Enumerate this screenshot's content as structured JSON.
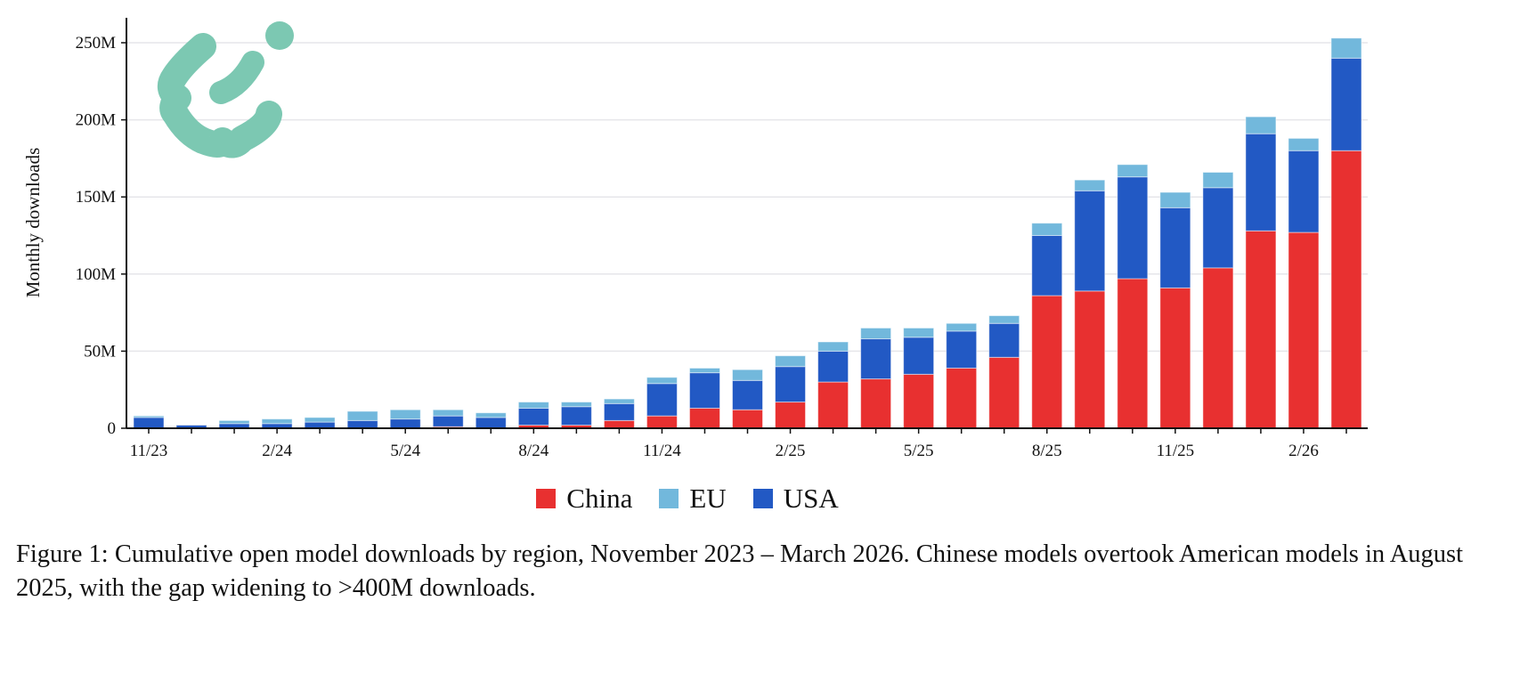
{
  "chart_data": {
    "type": "bar",
    "stacked": true,
    "ylabel": "Monthly downloads",
    "xlabel": "",
    "ylim": [
      0,
      265
    ],
    "yticks": [
      0,
      50,
      100,
      150,
      200,
      250
    ],
    "ytick_labels": [
      "0",
      "50M",
      "100M",
      "150M",
      "200M",
      "250M"
    ],
    "grid": "horizontal",
    "legend_placement": "bottom-center",
    "categories": [
      "11/23",
      "12/23",
      "1/24",
      "2/24",
      "3/24",
      "4/24",
      "5/24",
      "6/24",
      "7/24",
      "8/24",
      "9/24",
      "10/24",
      "11/24",
      "12/24",
      "1/25",
      "2/25",
      "3/25",
      "4/25",
      "5/25",
      "6/25",
      "7/25",
      "8/25",
      "9/25",
      "10/25",
      "11/25",
      "12/25",
      "1/26",
      "2/26",
      "3/26"
    ],
    "xtick_labels": [
      "11/23",
      "2/24",
      "5/24",
      "8/24",
      "11/24",
      "2/25",
      "5/25",
      "8/25",
      "11/25",
      "2/26"
    ],
    "xtick_every": 3,
    "units": "millions",
    "series": [
      {
        "name": "China",
        "color": "#e83030",
        "values": [
          0,
          0,
          0,
          0,
          0,
          0,
          0,
          1,
          0,
          2,
          2,
          5,
          8,
          13,
          12,
          17,
          30,
          32,
          35,
          39,
          46,
          86,
          89,
          97,
          91,
          104,
          128,
          127,
          180
        ]
      },
      {
        "name": "USA",
        "color": "#2259c4",
        "values": [
          7,
          2,
          3,
          3,
          4,
          5,
          6,
          7,
          7,
          11,
          12,
          11,
          21,
          23,
          19,
          23,
          20,
          26,
          24,
          24,
          22,
          39,
          65,
          66,
          52,
          52,
          63,
          53,
          60
        ]
      },
      {
        "name": "EU",
        "color": "#72b8dc",
        "values": [
          1,
          0,
          2,
          3,
          3,
          6,
          6,
          4,
          3,
          4,
          3,
          3,
          4,
          3,
          7,
          7,
          6,
          7,
          6,
          5,
          5,
          8,
          7,
          8,
          10,
          10,
          11,
          8,
          13
        ]
      }
    ],
    "legend": [
      "China",
      "EU",
      "USA"
    ]
  },
  "logo": {
    "color": "#7cc8b2"
  },
  "caption": "Figure 1: Cumulative open model downloads by region, November 2023 – March 2026. Chinese models overtook American models in August 2025, with the gap widening to >400M downloads."
}
